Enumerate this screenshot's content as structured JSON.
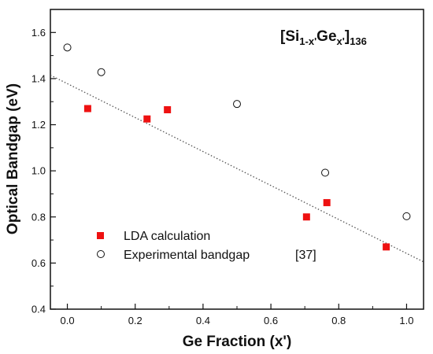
{
  "chart_data": {
    "type": "scatter",
    "title": {
      "prefix": "[Si",
      "sub1": "1-x'",
      "mid": "Ge",
      "sub2": "x'",
      "close": "]",
      "sub3": "136"
    },
    "xlabel": "Ge Fraction (x')",
    "ylabel": "Optical Bandgap (eV)",
    "xlim": [
      -0.05,
      1.05
    ],
    "ylim": [
      0.4,
      1.7
    ],
    "xticks": [
      0.0,
      0.2,
      0.4,
      0.6,
      0.8,
      1.0
    ],
    "xtick_labels": [
      "0.0",
      "0.2",
      "0.4",
      "0.6",
      "0.8",
      "1.0"
    ],
    "yticks": [
      0.4,
      0.6,
      0.8,
      1.0,
      1.2,
      1.4,
      1.6
    ],
    "ytick_labels": [
      "0.4",
      "0.6",
      "0.8",
      "1.0",
      "1.2",
      "1.4",
      "1.6"
    ],
    "grid": false,
    "legend_position": "bottom-left",
    "series": [
      {
        "name": "LDA calculation",
        "marker": "filled-square",
        "color": "#ee1111",
        "points": [
          {
            "x": 0.06,
            "y": 1.27
          },
          {
            "x": 0.235,
            "y": 1.225
          },
          {
            "x": 0.295,
            "y": 1.265
          },
          {
            "x": 0.705,
            "y": 0.8
          },
          {
            "x": 0.765,
            "y": 0.862
          },
          {
            "x": 0.94,
            "y": 0.67
          }
        ]
      },
      {
        "name": "Experimental bandgap",
        "legend_suffix": "[37]",
        "marker": "open-circle",
        "color": "#111111",
        "points": [
          {
            "x": 0.0,
            "y": 1.535
          },
          {
            "x": 0.1,
            "y": 1.428
          },
          {
            "x": 0.5,
            "y": 1.29
          },
          {
            "x": 0.76,
            "y": 0.992
          },
          {
            "x": 1.0,
            "y": 0.803
          }
        ]
      }
    ],
    "fit_line": {
      "style": "dotted",
      "color": "#555555",
      "x": [
        -0.05,
        1.05
      ],
      "y": [
        1.415,
        0.605
      ]
    }
  }
}
